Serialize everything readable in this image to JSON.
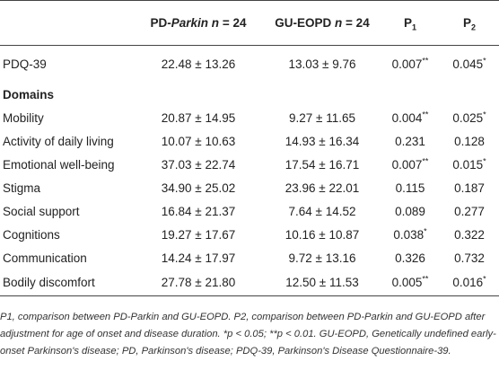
{
  "header": {
    "col0": "",
    "col1_prefix": "PD-",
    "col1_italic": "Parkin n",
    "col1_suffix": " = 24",
    "col2_prefix": "GU-EOPD ",
    "col2_italic": "n",
    "col2_suffix": " = 24",
    "col3_main": "P",
    "col3_sub": "1",
    "col4_main": "P",
    "col4_sub": "2"
  },
  "rows": [
    {
      "label": "PDQ-39",
      "pd": "22.48 ± 13.26",
      "gu": "13.03 ± 9.76",
      "p1": "0.007",
      "p1_sig": "**",
      "p2": "0.045",
      "p2_sig": "*"
    },
    {
      "section": "Domains"
    },
    {
      "label": "Mobility",
      "pd": "20.87 ± 14.95",
      "gu": "9.27 ± 11.65",
      "p1": "0.004",
      "p1_sig": "**",
      "p2": "0.025",
      "p2_sig": "*"
    },
    {
      "label": "Activity of daily living",
      "pd": "10.07 ± 10.63",
      "gu": "14.93 ± 16.34",
      "p1": "0.231",
      "p1_sig": "",
      "p2": "0.128",
      "p2_sig": ""
    },
    {
      "label": "Emotional well-being",
      "pd": "37.03 ± 22.74",
      "gu": "17.54 ± 16.71",
      "p1": "0.007",
      "p1_sig": "**",
      "p2": "0.015",
      "p2_sig": "*"
    },
    {
      "label": "Stigma",
      "pd": "34.90 ± 25.02",
      "gu": "23.96 ± 22.01",
      "p1": "0.115",
      "p1_sig": "",
      "p2": "0.187",
      "p2_sig": ""
    },
    {
      "label": "Social support",
      "pd": "16.84 ± 21.37",
      "gu": "7.64 ± 14.52",
      "p1": "0.089",
      "p1_sig": "",
      "p2": "0.277",
      "p2_sig": ""
    },
    {
      "label": "Cognitions",
      "pd": "19.27 ± 17.67",
      "gu": "10.16 ± 10.87",
      "p1": "0.038",
      "p1_sig": "*",
      "p2": "0.322",
      "p2_sig": ""
    },
    {
      "label": "Communication",
      "pd": "14.24 ± 17.97",
      "gu": "9.72 ± 13.16",
      "p1": "0.326",
      "p1_sig": "",
      "p2": "0.732",
      "p2_sig": ""
    },
    {
      "label": "Bodily discomfort",
      "pd": "27.78 ± 21.80",
      "gu": "12.50 ± 11.53",
      "p1": "0.005",
      "p1_sig": "**",
      "p2": "0.016",
      "p2_sig": "*"
    }
  ],
  "footnote": "P1, comparison between PD-Parkin and GU-EOPD. P2, comparison between PD-Parkin and GU-EOPD after adjustment for age of onset and disease duration. *p < 0.05; **p < 0.01. GU-EOPD, Genetically undefined early-onset Parkinson's disease; PD, Parkinson's disease; PDQ-39, Parkinson's Disease Questionnaire-39."
}
